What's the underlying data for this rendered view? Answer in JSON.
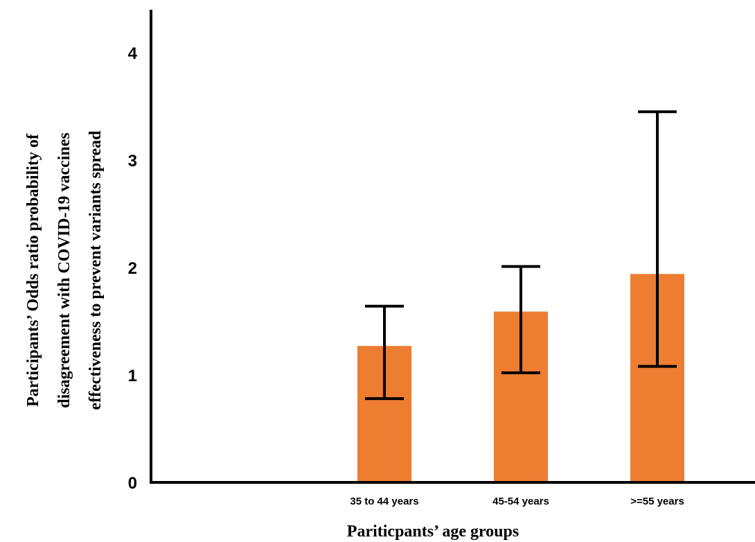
{
  "chart_data": {
    "type": "bar",
    "title": "",
    "xlabel": "Pariticpants’ age groups",
    "ylabel_lines": [
      "Participants’ Odds ratio probability of",
      "disagreement with COVID-19 vaccines",
      "effectiveness to prevent variants spread"
    ],
    "categories": [
      "",
      "35 to 44 years",
      "45-54 years",
      ">=55 years"
    ],
    "values": [
      null,
      1.27,
      1.59,
      1.94
    ],
    "error_low": [
      null,
      0.78,
      1.02,
      1.08
    ],
    "error_high": [
      null,
      1.64,
      2.01,
      3.45
    ],
    "ylim": [
      0,
      4.4
    ],
    "yticks": [
      0,
      1,
      2,
      3,
      4
    ],
    "grid": false,
    "legend": "none",
    "bar_color": "#ED7D31",
    "axis_color": "#000000"
  }
}
